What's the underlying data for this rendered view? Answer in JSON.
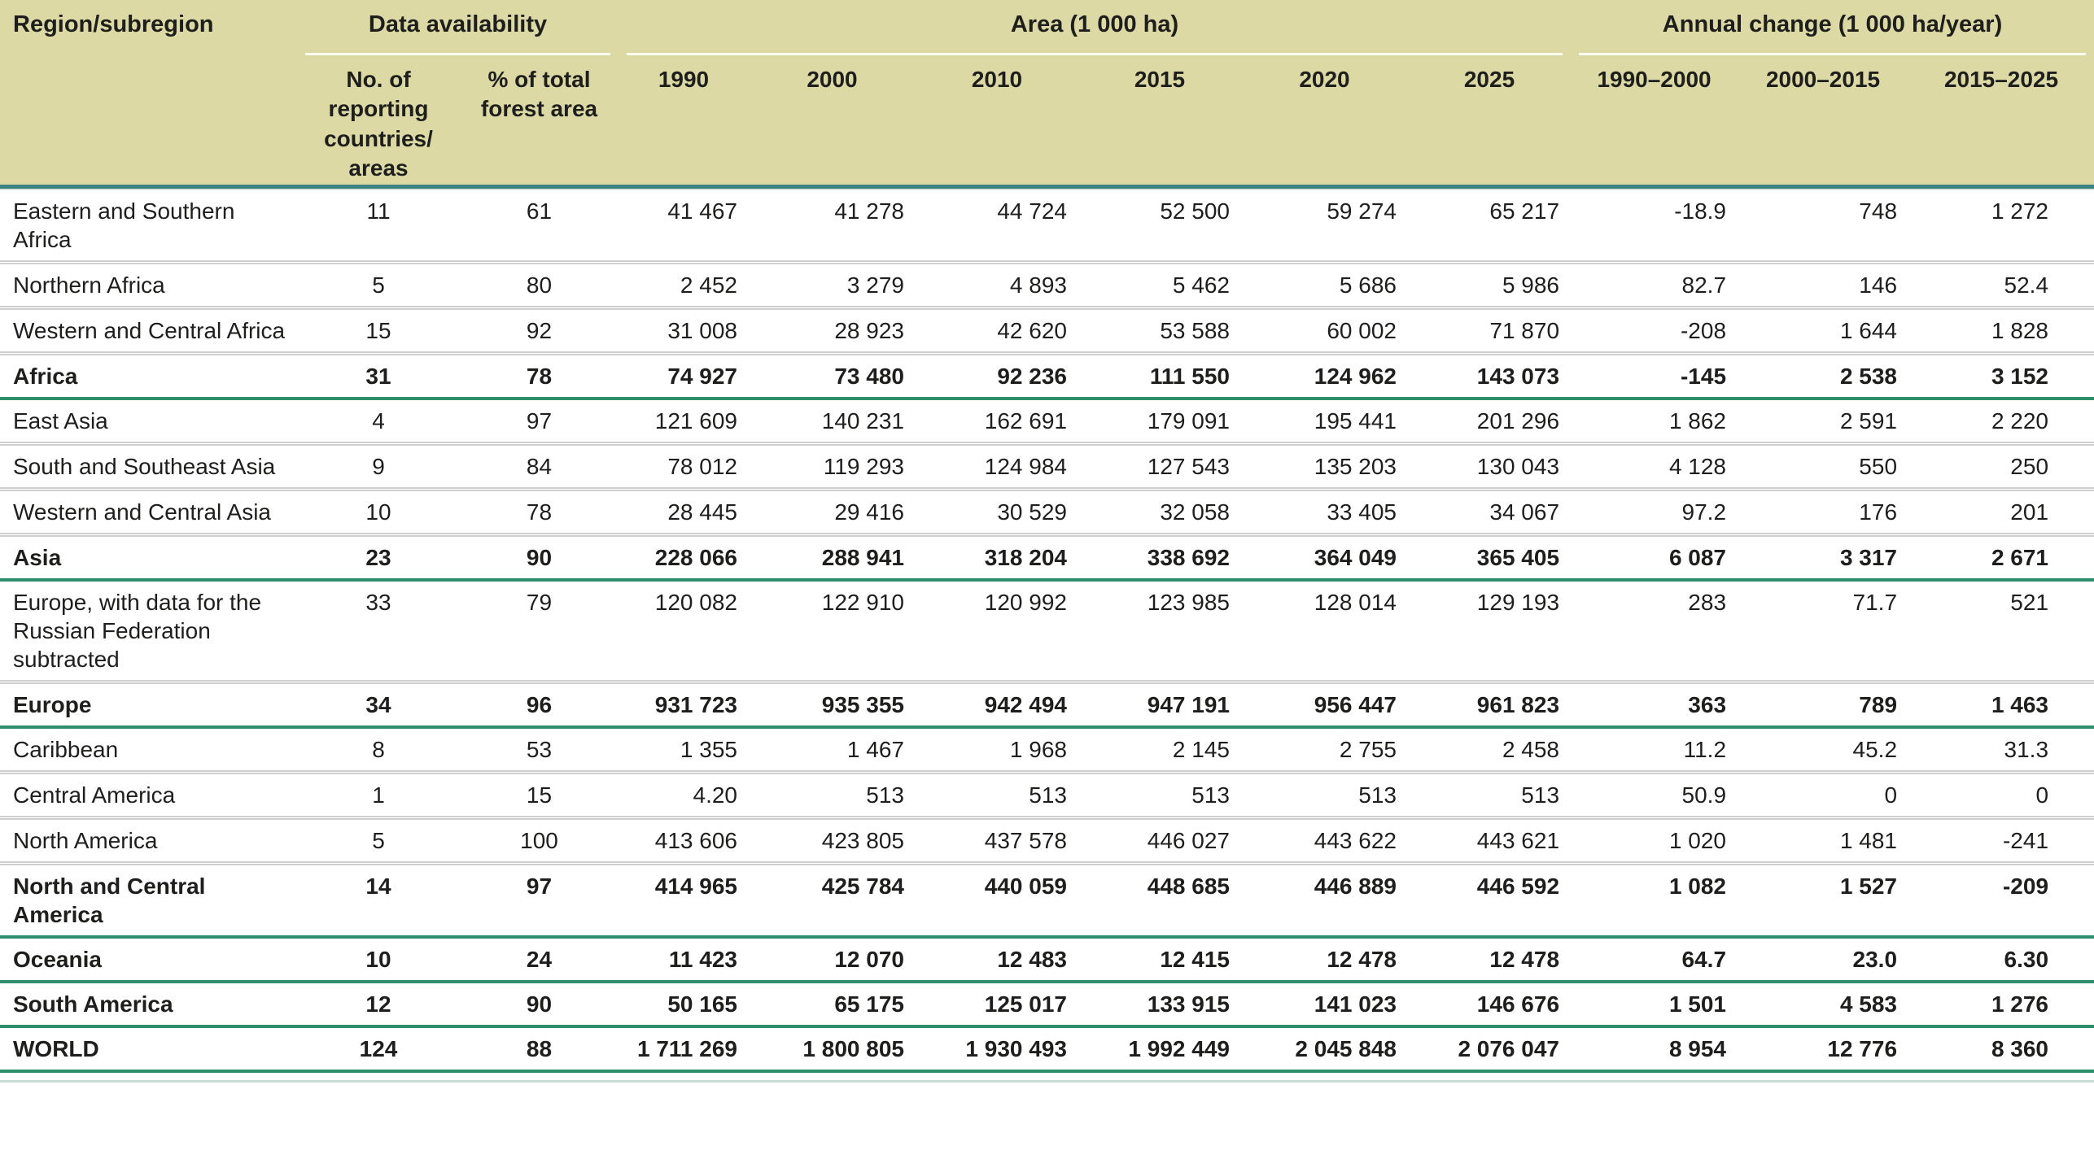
{
  "chart_data": {
    "type": "table",
    "region_header": "Region/subregion",
    "groups": [
      {
        "label": "Data availability",
        "span": 2
      },
      {
        "label": "Area (1 000 ha)",
        "span": 6
      },
      {
        "label": "Annual change (1 000 ha/year)",
        "span": 3
      }
    ],
    "columns": [
      "No. of reporting countries/ areas",
      "% of total forest area",
      "1990",
      "2000",
      "2010",
      "2015",
      "2020",
      "2025",
      "1990–2000",
      "2000–2015",
      "2015–2025"
    ],
    "rows": [
      {
        "region": "Eastern and Southern Africa",
        "bold": false,
        "values": [
          "11",
          "61",
          "41 467",
          "41 278",
          "44 724",
          "52 500",
          "59 274",
          "65 217",
          "-18.9",
          "748",
          "1 272"
        ]
      },
      {
        "region": "Northern Africa",
        "bold": false,
        "values": [
          "5",
          "80",
          "2 452",
          "3 279",
          "4 893",
          "5 462",
          "5 686",
          "5 986",
          "82.7",
          "146",
          "52.4"
        ]
      },
      {
        "region": "Western and Central Africa",
        "bold": false,
        "values": [
          "15",
          "92",
          "31 008",
          "28 923",
          "42 620",
          "53 588",
          "60 002",
          "71 870",
          "-208",
          "1 644",
          "1 828"
        ]
      },
      {
        "region": "Africa",
        "bold": true,
        "values": [
          "31",
          "78",
          "74 927",
          "73 480",
          "92 236",
          "111 550",
          "124 962",
          "143 073",
          "-145",
          "2 538",
          "3 152"
        ]
      },
      {
        "region": "East Asia",
        "bold": false,
        "values": [
          "4",
          "97",
          "121 609",
          "140 231",
          "162 691",
          "179 091",
          "195 441",
          "201 296",
          "1 862",
          "2 591",
          "2 220"
        ]
      },
      {
        "region": "South and Southeast Asia",
        "bold": false,
        "values": [
          "9",
          "84",
          "78 012",
          "119 293",
          "124 984",
          "127 543",
          "135 203",
          "130 043",
          "4 128",
          "550",
          "250"
        ]
      },
      {
        "region": "Western and Central Asia",
        "bold": false,
        "values": [
          "10",
          "78",
          "28 445",
          "29 416",
          "30 529",
          "32 058",
          "33 405",
          "34 067",
          "97.2",
          "176",
          "201"
        ]
      },
      {
        "region": "Asia",
        "bold": true,
        "values": [
          "23",
          "90",
          "228 066",
          "288 941",
          "318 204",
          "338 692",
          "364 049",
          "365 405",
          "6 087",
          "3 317",
          "2 671"
        ]
      },
      {
        "region": "Europe, with data for the Russian Federation subtracted",
        "bold": false,
        "values": [
          "33",
          "79",
          "120 082",
          "122 910",
          "120 992",
          "123 985",
          "128 014",
          "129 193",
          "283",
          "71.7",
          "521"
        ]
      },
      {
        "region": "Europe",
        "bold": true,
        "values": [
          "34",
          "96",
          "931 723",
          "935 355",
          "942 494",
          "947 191",
          "956 447",
          "961 823",
          "363",
          "789",
          "1 463"
        ]
      },
      {
        "region": "Caribbean",
        "bold": false,
        "values": [
          "8",
          "53",
          "1 355",
          "1 467",
          "1 968",
          "2 145",
          "2 755",
          "2 458",
          "11.2",
          "45.2",
          "31.3"
        ]
      },
      {
        "region": "Central America",
        "bold": false,
        "values": [
          "1",
          "15",
          "4.20",
          "513",
          "513",
          "513",
          "513",
          "513",
          "50.9",
          "0",
          "0"
        ]
      },
      {
        "region": "North America",
        "bold": false,
        "values": [
          "5",
          "100",
          "413 606",
          "423 805",
          "437 578",
          "446 027",
          "443 622",
          "443 621",
          "1 020",
          "1 481",
          "-241"
        ]
      },
      {
        "region": "North and Central America",
        "bold": true,
        "values": [
          "14",
          "97",
          "414 965",
          "425 784",
          "440 059",
          "448 685",
          "446 889",
          "446 592",
          "1 082",
          "1 527",
          "-209"
        ]
      },
      {
        "region": "Oceania",
        "bold": true,
        "values": [
          "10",
          "24",
          "11 423",
          "12 070",
          "12 483",
          "12 415",
          "12 478",
          "12 478",
          "64.7",
          "23.0",
          "6.30"
        ]
      },
      {
        "region": "South America",
        "bold": true,
        "values": [
          "12",
          "90",
          "50 165",
          "65 175",
          "125 017",
          "133 915",
          "141 023",
          "146 676",
          "1 501",
          "4 583",
          "1 276"
        ]
      },
      {
        "region": "WORLD",
        "bold": true,
        "values": [
          "124",
          "88",
          "1 711 269",
          "1 800 805",
          "1 930 493",
          "1 992 449",
          "2 045 848",
          "2 076 047",
          "8 954",
          "12 776",
          "8 360"
        ]
      }
    ]
  }
}
